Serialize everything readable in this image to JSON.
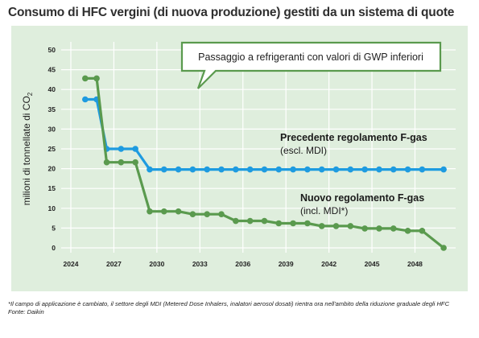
{
  "title": "Consumo di HFC vergini (di nuova produzione) gestiti da un sistema di quote",
  "footnote": "*Il campo di applicazione è cambiato, il settore degli MDI (Metered Dose Inhalers, inalatori aerosol dosati) rientra ora nell'ambito della riduzione graduale degli HFC",
  "source": "Fonte: Daikin",
  "colors": {
    "background": "#dfeedd",
    "grid": "#ffffff",
    "old_series": "#1e9be0",
    "new_series": "#5a9a4e"
  },
  "chart_data": {
    "type": "line",
    "title": "Consumo di HFC vergini (di nuova produzione) gestiti da un sistema di quote",
    "ylabel": "milioni di tonnellate di CO",
    "ylabel_sub": "2",
    "xlabel": "",
    "xlim": [
      2024,
      2050.5
    ],
    "ylim": [
      0,
      50
    ],
    "grid": true,
    "x_ticks": [
      2024,
      2027,
      2030,
      2033,
      2036,
      2039,
      2042,
      2045,
      2048
    ],
    "y_ticks": [
      0,
      5,
      10,
      15,
      20,
      25,
      30,
      35,
      40,
      45,
      50
    ],
    "series": [
      {
        "name": "Precedente regolamento F-gas",
        "sublabel": "(escl. MDI)",
        "x": [
          2025,
          2025.8,
          2026.5,
          2027.5,
          2028.5,
          2029.5,
          2030.5,
          2031.5,
          2032.5,
          2033.5,
          2034.5,
          2035.5,
          2036.5,
          2037.5,
          2038.5,
          2039.5,
          2040.5,
          2041.5,
          2042.5,
          2043.5,
          2044.5,
          2045.5,
          2046.5,
          2047.5,
          2048.5,
          2050
        ],
        "y": [
          37.5,
          37.5,
          25,
          25,
          25,
          19.8,
          19.8,
          19.8,
          19.8,
          19.8,
          19.8,
          19.8,
          19.8,
          19.8,
          19.8,
          19.8,
          19.8,
          19.8,
          19.8,
          19.8,
          19.8,
          19.8,
          19.8,
          19.8,
          19.8,
          19.8
        ]
      },
      {
        "name": "Nuovo regolamento F-gas",
        "sublabel": "(incl. MDI*)",
        "x": [
          2025,
          2025.8,
          2026.5,
          2027.5,
          2028.5,
          2029.5,
          2030.5,
          2031.5,
          2032.5,
          2033.5,
          2034.5,
          2035.5,
          2036.5,
          2037.5,
          2038.5,
          2039.5,
          2040.5,
          2041.5,
          2042.5,
          2043.5,
          2044.5,
          2045.5,
          2046.5,
          2047.5,
          2048.5,
          2050
        ],
        "y": [
          42.8,
          42.8,
          21.6,
          21.6,
          21.6,
          9.2,
          9.2,
          9.2,
          8.5,
          8.5,
          8.5,
          6.8,
          6.8,
          6.8,
          6.2,
          6.2,
          6.2,
          5.5,
          5.5,
          5.5,
          4.9,
          4.9,
          4.9,
          4.3,
          4.3,
          0
        ]
      }
    ],
    "annotation": "Passaggio a refrigeranti con valori di GWP inferiori"
  }
}
